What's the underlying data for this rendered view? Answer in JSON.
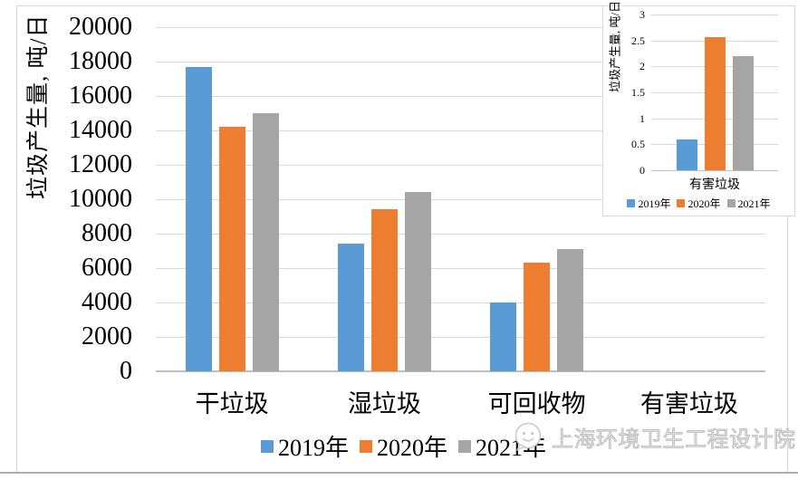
{
  "watermark": {
    "logo": "wechat-face-logo",
    "text": "上海环境卫生工程设计院"
  },
  "colors": {
    "series_2019": "#5B9BD5",
    "series_2020": "#ED7D31",
    "series_2021": "#A5A5A5",
    "gridline": "#d9d9d9",
    "axisline": "#bfbfbf"
  },
  "chart_data": [
    {
      "id": "main",
      "type": "bar",
      "title": "",
      "xlabel": "",
      "ylabel": "垃圾产生量, 吨/日",
      "categories": [
        "干垃圾",
        "湿垃圾",
        "可回收物",
        "有害垃圾"
      ],
      "series": [
        {
          "name": "2019年",
          "color": "#5B9BD5",
          "values": [
            17700,
            7400,
            4000,
            0.6
          ]
        },
        {
          "name": "2020年",
          "color": "#ED7D31",
          "values": [
            14200,
            9400,
            6300,
            2.56
          ]
        },
        {
          "name": "2021年",
          "color": "#A5A5A5",
          "values": [
            15000,
            10400,
            7100,
            2.2
          ]
        }
      ],
      "ylim": [
        0,
        20000
      ],
      "ytick_step": 2000,
      "ytick_labels": [
        "0",
        "2000",
        "4000",
        "6000",
        "8000",
        "10000",
        "12000",
        "14000",
        "16000",
        "18000",
        "20000"
      ],
      "grid": true,
      "legend_position": "bottom"
    },
    {
      "id": "inset",
      "type": "bar",
      "title": "",
      "xlabel": "",
      "ylabel": "垃圾产生量, 吨/日",
      "categories": [
        "有害垃圾"
      ],
      "series": [
        {
          "name": "2019年",
          "color": "#5B9BD5",
          "values": [
            0.6
          ]
        },
        {
          "name": "2020年",
          "color": "#ED7D31",
          "values": [
            2.56
          ]
        },
        {
          "name": "2021年",
          "color": "#A5A5A5",
          "values": [
            2.2
          ]
        }
      ],
      "ylim": [
        0,
        3
      ],
      "ytick_step": 0.5,
      "ytick_labels": [
        "0",
        "0.5",
        "1",
        "1.5",
        "2",
        "2.5",
        "3"
      ],
      "grid": true,
      "legend_position": "bottom"
    }
  ]
}
